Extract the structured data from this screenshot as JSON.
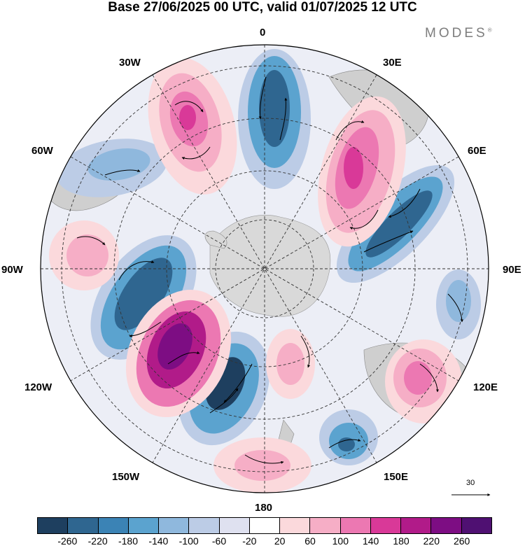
{
  "title": "Base 27/06/2025 00 UTC, valid 01/07/2025 12 UTC",
  "brand": "MODES",
  "brand_mark": "®",
  "longitude_labels": {
    "lon_0": "0",
    "lon_30e": "30E",
    "lon_60e": "60E",
    "lon_90e": "90E",
    "lon_120e": "120E",
    "lon_150e": "150E",
    "lon_180": "180",
    "lon_150w": "150W",
    "lon_120w": "120W",
    "lon_90w": "90W",
    "lon_60w": "60W",
    "lon_30w": "30W"
  },
  "reference_vector": "30",
  "colorbar": {
    "colors": [
      "#1e3f5f",
      "#2f6690",
      "#3b83b5",
      "#5ba3cf",
      "#8fb8dd",
      "#bccce6",
      "#dfe1f0",
      "#ffffff",
      "#fbd9dc",
      "#f6aec6",
      "#ec78b2",
      "#d93998",
      "#b11b89",
      "#7d0d83",
      "#4f1072"
    ],
    "labels": [
      "-260",
      "-220",
      "-180",
      "-140",
      "-100",
      "-60",
      "-20",
      "20",
      "60",
      "100",
      "140",
      "180",
      "220",
      "260"
    ]
  },
  "palette": {
    "neg_light": "#bccce6",
    "neg_mid": "#5ba3cf",
    "neg_dark": "#2f6690",
    "neg_darkest": "#1e3f5f",
    "pos_light": "#fbd9dc",
    "pos_mid": "#f6aec6",
    "pos_strong": "#ec78b2",
    "pos_dark": "#b11b89",
    "pos_darkest": "#7d0d83",
    "land": "#c8c8c8"
  }
}
